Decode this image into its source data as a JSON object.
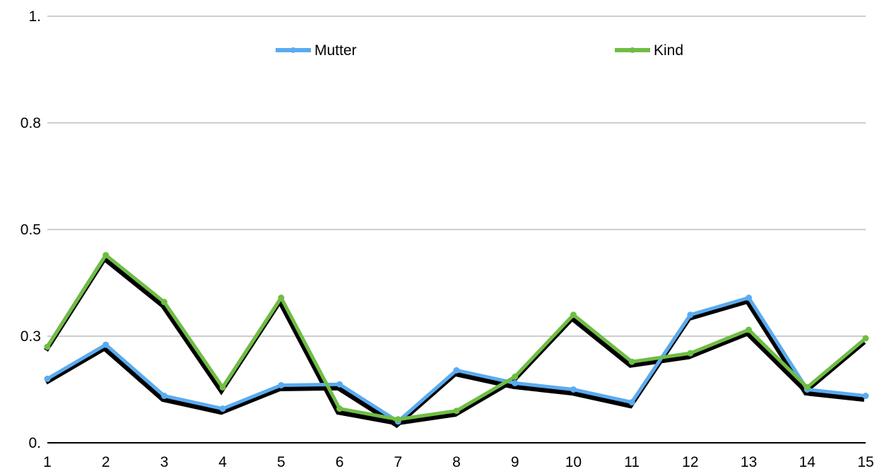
{
  "chart_data": {
    "type": "line",
    "title": "",
    "xlabel": "",
    "ylabel": "",
    "categories": [
      "1",
      "2",
      "3",
      "4",
      "5",
      "6",
      "7",
      "8",
      "9",
      "10",
      "11",
      "12",
      "13",
      "14",
      "15"
    ],
    "y_ticks": [
      {
        "label": "0.",
        "value": 0
      },
      {
        "label": "0.3",
        "value": 0.25
      },
      {
        "label": "0.5",
        "value": 0.5
      },
      {
        "label": "0.8",
        "value": 0.75
      },
      {
        "label": "1.",
        "value": 1.0
      }
    ],
    "ylim": [
      0,
      1.0
    ],
    "grid": true,
    "legend_position": "top",
    "line_shadow": true,
    "series": [
      {
        "name": "Mutter",
        "color": "#5aabf0",
        "values": [
          0.15,
          0.23,
          0.11,
          0.08,
          0.135,
          0.137,
          0.05,
          0.17,
          0.14,
          0.125,
          0.095,
          0.3,
          0.34,
          0.125,
          0.11
        ]
      },
      {
        "name": "Kind",
        "color": "#6fbd44",
        "values": [
          0.225,
          0.44,
          0.33,
          0.13,
          0.34,
          0.08,
          0.055,
          0.075,
          0.155,
          0.3,
          0.19,
          0.21,
          0.265,
          0.13,
          0.245
        ]
      }
    ]
  }
}
